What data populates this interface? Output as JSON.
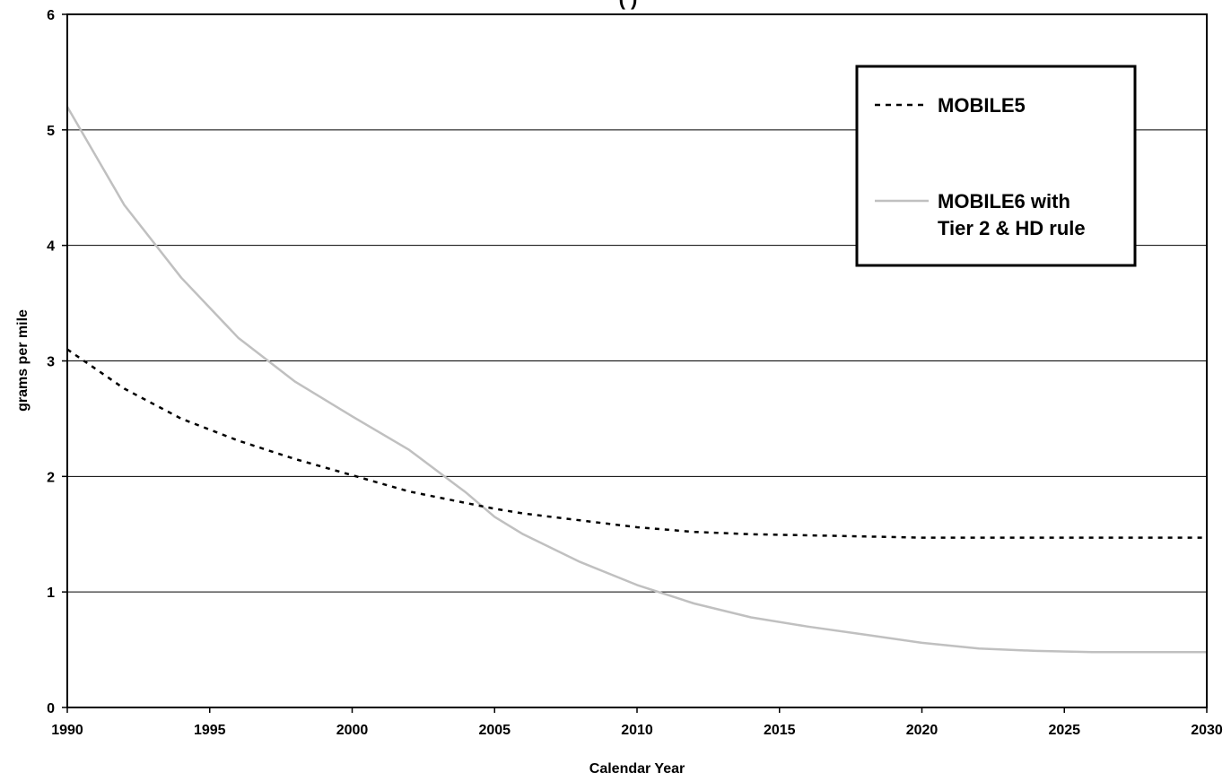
{
  "chart_data": {
    "type": "line",
    "title": "",
    "xlabel": "Calendar Year",
    "ylabel": "grams per mile",
    "xlim": [
      1990,
      2030
    ],
    "ylim": [
      0,
      6
    ],
    "x_ticks": [
      1990,
      1995,
      2000,
      2005,
      2010,
      2015,
      2020,
      2025,
      2030
    ],
    "y_ticks": [
      0,
      1,
      2,
      3,
      4,
      5,
      6
    ],
    "grid": "horizontal",
    "legend_position": "top-right",
    "series": [
      {
        "name": "MOBILE5",
        "style": "dotted",
        "color": "#000000",
        "x": [
          1990,
          1992,
          1994,
          1996,
          1998,
          2000,
          2002,
          2004,
          2005,
          2006,
          2008,
          2010,
          2012,
          2014,
          2016,
          2018,
          2020,
          2022,
          2024,
          2026,
          2028,
          2030
        ],
        "y": [
          3.1,
          2.76,
          2.5,
          2.31,
          2.15,
          2.01,
          1.87,
          1.77,
          1.72,
          1.68,
          1.62,
          1.56,
          1.52,
          1.5,
          1.49,
          1.48,
          1.47,
          1.47,
          1.47,
          1.47,
          1.47,
          1.47
        ]
      },
      {
        "name": "MOBILE6 with Tier 2 & HD rule",
        "name_lines": [
          "MOBILE6 with",
          "Tier 2 & HD rule"
        ],
        "style": "solid",
        "color": "#c0c0c0",
        "x": [
          1990,
          1992,
          1994,
          1996,
          1998,
          2000,
          2002,
          2004,
          2005,
          2006,
          2008,
          2010,
          2012,
          2014,
          2016,
          2018,
          2020,
          2022,
          2024,
          2026,
          2028,
          2030
        ],
        "y": [
          5.2,
          4.35,
          3.72,
          3.2,
          2.82,
          2.52,
          2.23,
          1.86,
          1.65,
          1.5,
          1.26,
          1.06,
          0.9,
          0.78,
          0.7,
          0.63,
          0.56,
          0.51,
          0.49,
          0.48,
          0.48,
          0.48
        ]
      }
    ]
  }
}
